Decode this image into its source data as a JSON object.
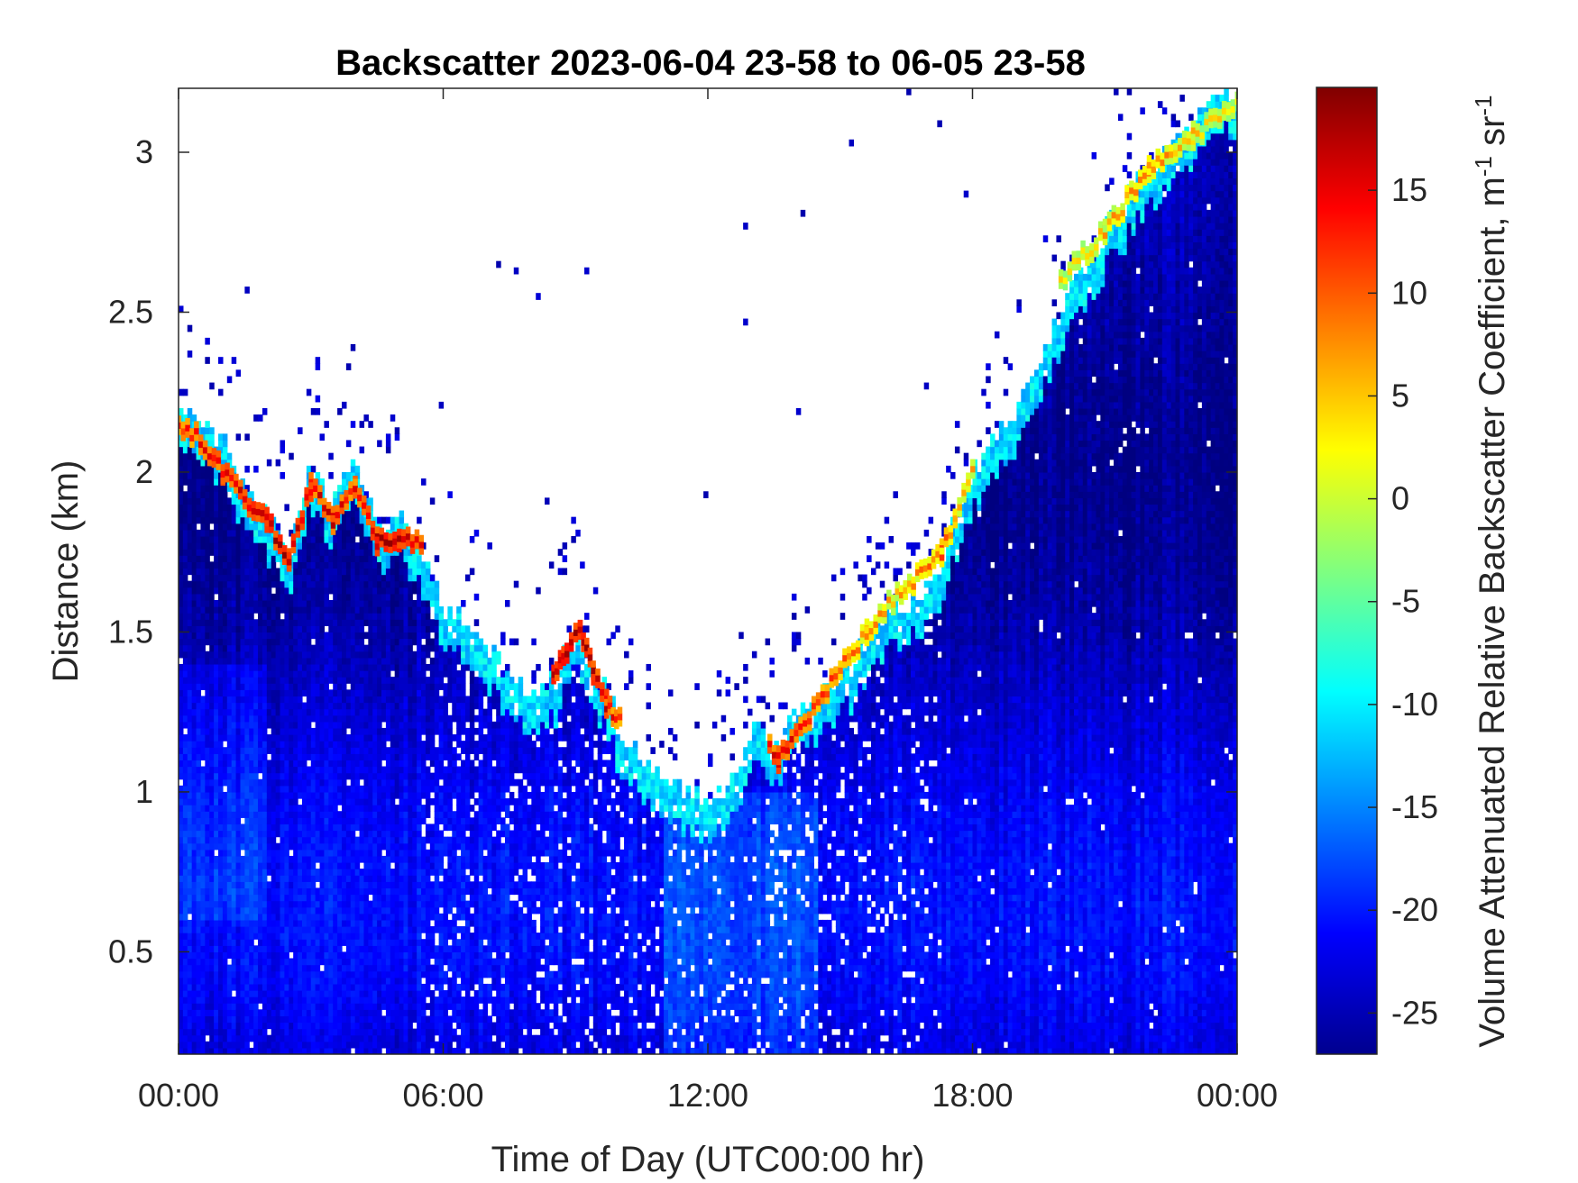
{
  "chart_data": {
    "type": "heatmap",
    "title": "Backscatter 2023-06-04 23-58 to 06-05 23-58",
    "xlabel": "Time of Day (UTC00:00 hr)",
    "ylabel": "Distance (km)",
    "colorbar_label": "Volume Attenuated Relative Backscatter Coefficient, m",
    "colorbar_label_sup1": "-1",
    "colorbar_label_mid": " sr",
    "colorbar_label_sup2": "-1",
    "x_unit": "hours",
    "xlim": [
      0,
      24
    ],
    "ylim": [
      0.18,
      3.2
    ],
    "clim": [
      -27,
      20
    ],
    "colormap": "jet",
    "xticks": [
      {
        "value": 0,
        "label": "00:00"
      },
      {
        "value": 6,
        "label": "06:00"
      },
      {
        "value": 12,
        "label": "12:00"
      },
      {
        "value": 18,
        "label": "18:00"
      },
      {
        "value": 24,
        "label": "00:00"
      }
    ],
    "yticks": [
      {
        "value": 0.5,
        "label": "0.5"
      },
      {
        "value": 1,
        "label": "1"
      },
      {
        "value": 1.5,
        "label": "1.5"
      },
      {
        "value": 2,
        "label": "2"
      },
      {
        "value": 2.5,
        "label": "2.5"
      },
      {
        "value": 3,
        "label": "3"
      }
    ],
    "cticks": [
      {
        "value": -25,
        "label": "-25"
      },
      {
        "value": -20,
        "label": "-20"
      },
      {
        "value": -15,
        "label": "-15"
      },
      {
        "value": -10,
        "label": "-10"
      },
      {
        "value": -5,
        "label": "-5"
      },
      {
        "value": 0,
        "label": "0"
      },
      {
        "value": 5,
        "label": "5"
      },
      {
        "value": 10,
        "label": "10"
      },
      {
        "value": 15,
        "label": "15"
      }
    ],
    "signal_top_km": [
      [
        0,
        2.2
      ],
      [
        0.5,
        2.15
      ],
      [
        1.0,
        2.1
      ],
      [
        1.5,
        1.95
      ],
      [
        2.0,
        1.85
      ],
      [
        2.5,
        1.72
      ],
      [
        3.0,
        2.0
      ],
      [
        3.5,
        1.9
      ],
      [
        4.0,
        2.05
      ],
      [
        4.5,
        1.82
      ],
      [
        5.0,
        1.85
      ],
      [
        5.5,
        1.75
      ],
      [
        6.0,
        1.6
      ],
      [
        7.0,
        1.45
      ],
      [
        8.0,
        1.3
      ],
      [
        8.5,
        1.35
      ],
      [
        9.0,
        1.5
      ],
      [
        9.5,
        1.38
      ],
      [
        10.0,
        1.2
      ],
      [
        11.0,
        1.05
      ],
      [
        11.5,
        1.0
      ],
      [
        12.0,
        0.95
      ],
      [
        12.5,
        1.05
      ],
      [
        13.0,
        1.2
      ],
      [
        13.5,
        1.15
      ],
      [
        14.0,
        1.25
      ],
      [
        15.0,
        1.35
      ],
      [
        15.5,
        1.45
      ],
      [
        16.0,
        1.55
      ],
      [
        16.5,
        1.6
      ],
      [
        17.0,
        1.65
      ],
      [
        17.3,
        1.7
      ],
      [
        17.6,
        1.85
      ],
      [
        18.0,
        2.0
      ],
      [
        19.0,
        2.2
      ],
      [
        20.0,
        2.5
      ],
      [
        21.0,
        2.75
      ],
      [
        22.0,
        2.95
      ],
      [
        23.0,
        3.1
      ],
      [
        24.0,
        3.2
      ]
    ],
    "layers": [
      {
        "name": "cloud-base-early",
        "points": [
          [
            0,
            2.15,
            12
          ],
          [
            0.5,
            2.1,
            14
          ],
          [
            1.0,
            2.0,
            15
          ],
          [
            1.5,
            1.92,
            16
          ],
          [
            2.0,
            1.85,
            17
          ],
          [
            2.5,
            1.72,
            18
          ],
          [
            3.0,
            1.95,
            15
          ],
          [
            3.5,
            1.85,
            16
          ],
          [
            4.0,
            1.95,
            14
          ],
          [
            4.5,
            1.78,
            17
          ],
          [
            5.0,
            1.8,
            18
          ],
          [
            5.5,
            1.78,
            15
          ]
        ]
      },
      {
        "name": "cloud-base-morning",
        "points": [
          [
            8.5,
            1.35,
            17
          ],
          [
            8.8,
            1.45,
            18
          ],
          [
            9.1,
            1.5,
            18
          ],
          [
            9.4,
            1.38,
            17
          ],
          [
            9.7,
            1.28,
            16
          ],
          [
            10.0,
            1.22,
            12
          ]
        ]
      },
      {
        "name": "cloud-base-afternoon",
        "points": [
          [
            13.4,
            1.15,
            14
          ],
          [
            13.6,
            1.1,
            16
          ],
          [
            15.6,
            1.5,
            8
          ],
          [
            16.2,
            1.6,
            6
          ],
          [
            17.3,
            1.75,
            10
          ],
          [
            18.0,
            2.0,
            6
          ]
        ]
      },
      {
        "name": "cloud-base-late",
        "points": [
          [
            20.0,
            2.6,
            4
          ],
          [
            21.0,
            2.75,
            6
          ],
          [
            22.0,
            2.95,
            8
          ],
          [
            23.0,
            3.05,
            5
          ],
          [
            24.0,
            3.15,
            3
          ]
        ]
      }
    ],
    "grid": false,
    "legend": "colorbar-right"
  }
}
